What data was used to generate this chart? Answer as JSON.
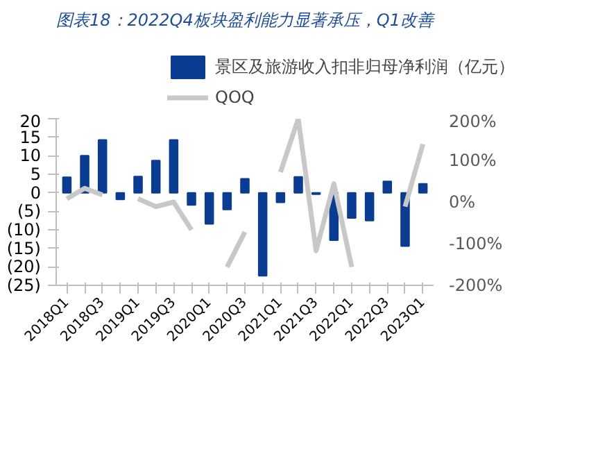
{
  "chart_data": {
    "type": "bar",
    "title": "图表18：2022Q4板块盈利能力显著承压，Q1改善",
    "categories": [
      "2018Q1",
      null,
      "2018Q3",
      null,
      "2019Q1",
      null,
      "2019Q3",
      null,
      "2020Q1",
      null,
      "2020Q3",
      null,
      "2021Q1",
      null,
      "2021Q3",
      null,
      "2022Q1",
      null,
      "2022Q3",
      null,
      "2023Q1"
    ],
    "series": [
      {
        "name": "景区及旅游收入扣非归母净利润（亿元）",
        "color": "#0a3d91",
        "values": [
          4.2,
          10,
          14.3,
          -1.8,
          4.4,
          8.7,
          14.3,
          -3.3,
          -8.4,
          -4.5,
          3.8,
          -22.4,
          -2.6,
          4.3,
          -0.4,
          -12.8,
          -6.8,
          -7.5,
          3.1,
          -14.4,
          2.4
        ]
      },
      {
        "name": "QOQ",
        "type": "line",
        "axis": "y2",
        "color": "#c8c8c8",
        "values": [
          8,
          33,
          17,
          null,
          8,
          -11,
          0,
          -67,
          null,
          -156,
          -72,
          null,
          72,
          200,
          -117,
          44,
          -156,
          null,
          null,
          -11,
          139
        ]
      }
    ],
    "ylim": [
      -25,
      20
    ],
    "yticks": [
      20,
      15,
      10,
      5,
      0,
      {
        "value": -5,
        "label": "(5)"
      },
      {
        "value": -10,
        "label": "(10)"
      },
      {
        "value": -15,
        "label": "(15)"
      },
      {
        "value": -20,
        "label": "(20)"
      },
      {
        "value": -25,
        "label": "(25)"
      }
    ],
    "y2lim": [
      -200,
      200
    ],
    "y2ticks": [
      {
        "value": 200,
        "label": "200%"
      },
      {
        "value": 100,
        "label": "100%"
      },
      {
        "value": 0,
        "label": "0%"
      },
      {
        "value": -100,
        "label": "-100%"
      },
      {
        "value": -200,
        "label": "-200%"
      }
    ],
    "grid": false,
    "legend": "top",
    "line_style": "solid",
    "marker": "none"
  }
}
